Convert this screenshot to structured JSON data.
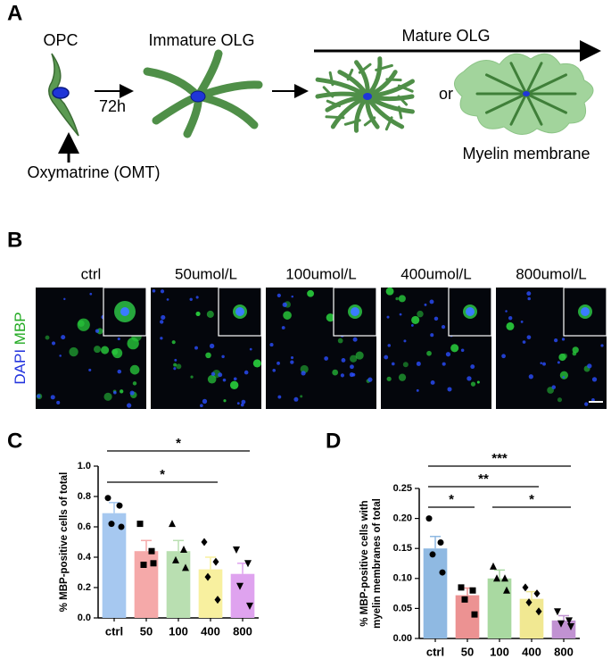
{
  "panel_a": {
    "letter": "A",
    "opc": "OPC",
    "time": "72h",
    "immature": "Immature OLG",
    "mature": "Mature OLG",
    "or": "or",
    "myelin": "Myelin membrane",
    "drug": "Oxymatrine (OMT)"
  },
  "panel_b": {
    "letter": "B",
    "columns": [
      "ctrl",
      "50umol/L",
      "100umol/L",
      "400umol/L",
      "800umol/L"
    ],
    "row_label": {
      "dapi": "DAPI",
      "mbp": "MBP"
    }
  },
  "chart_data": [
    {
      "type": "bar",
      "letter": "C",
      "y_label": [
        "% MBP-positive cells of total"
      ],
      "categories": [
        "ctrl",
        "50",
        "100",
        "400",
        "800"
      ],
      "values": [
        0.69,
        0.44,
        0.44,
        0.32,
        0.29
      ],
      "errors": [
        0.07,
        0.07,
        0.07,
        0.08,
        0.07
      ],
      "colors": [
        "#a6c8f0",
        "#f5a9a9",
        "#b9dfb1",
        "#f8f09f",
        "#dfa3ef"
      ],
      "points": [
        [
          0.79,
          0.74,
          0.62,
          0.6
        ],
        [
          0.62,
          0.44,
          0.35,
          0.36
        ],
        [
          0.62,
          0.45,
          0.38,
          0.33
        ],
        [
          0.5,
          0.37,
          0.27,
          0.12
        ],
        [
          0.45,
          0.36,
          0.21,
          0.08
        ]
      ],
      "markers": [
        "circle",
        "square",
        "triangle",
        "diamond",
        "triangle-down"
      ],
      "ylim": [
        0,
        1.0
      ],
      "yticks": [
        {
          "value": 0,
          "label": "0.0"
        },
        0.2,
        0.4,
        0.6,
        0.8,
        {
          "value": 1.0,
          "label": "1.0"
        }
      ],
      "brackets": [
        {
          "label": "*",
          "between": [
            "ctrl",
            "800"
          ]
        },
        {
          "label": "*",
          "between": [
            "ctrl",
            "400"
          ]
        }
      ]
    },
    {
      "type": "bar",
      "letter": "D",
      "y_label": [
        "% MBP-positive cells with",
        "myelin membranes of total"
      ],
      "categories": [
        "ctrl",
        "50",
        "100",
        "400",
        "800"
      ],
      "values": [
        0.15,
        0.072,
        0.1,
        0.066,
        0.03
      ],
      "errors": [
        0.02,
        0.012,
        0.014,
        0.012,
        0.008
      ],
      "colors": [
        "#8fb9e2",
        "#ec9292",
        "#a9d9a1",
        "#f1e892",
        "#c192d2"
      ],
      "points": [
        [
          0.2,
          0.16,
          0.14,
          0.11
        ],
        [
          0.085,
          0.08,
          0.065,
          0.04
        ],
        [
          0.12,
          0.1,
          0.1,
          0.08
        ],
        [
          0.085,
          0.075,
          0.06,
          0.045
        ],
        [
          0.045,
          0.03,
          0.025,
          0.02
        ]
      ],
      "markers": [
        "circle",
        "square",
        "triangle",
        "diamond",
        "triangle-down"
      ],
      "ylim": [
        0,
        0.25
      ],
      "yticks": [
        {
          "value": 0,
          "label": "0.00"
        },
        {
          "value": 0.05,
          "label": "0.05"
        },
        {
          "value": 0.1,
          "label": "0.10"
        },
        {
          "value": 0.15,
          "label": "0.15"
        },
        {
          "value": 0.2,
          "label": "0.20"
        },
        {
          "value": 0.25,
          "label": "0.25"
        }
      ],
      "brackets": [
        {
          "label": "***",
          "between": [
            "ctrl",
            "800"
          ]
        },
        {
          "label": "**",
          "between": [
            "ctrl",
            "400"
          ]
        },
        {
          "label": "*",
          "between": [
            "ctrl",
            "50"
          ]
        },
        {
          "label": "*",
          "between": [
            "100",
            "800"
          ]
        }
      ]
    }
  ]
}
